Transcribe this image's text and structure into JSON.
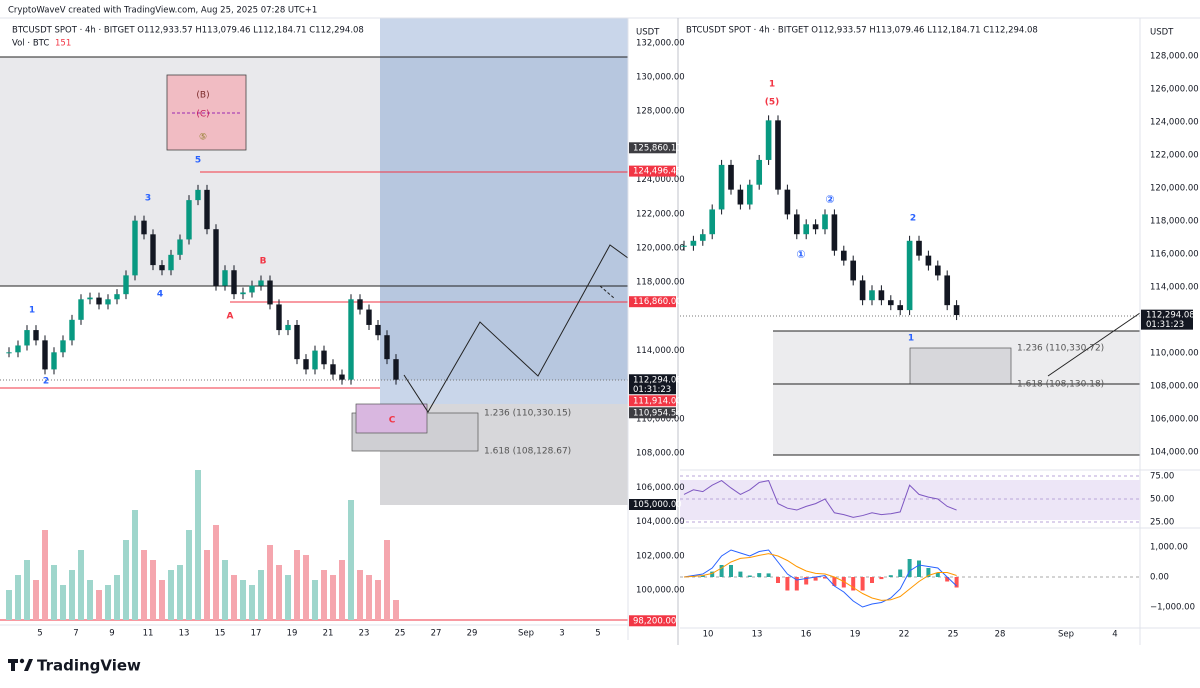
{
  "header": {
    "credit": "CryptoWaveV created with TradingView.com, Aug 25, 2025 07:28 UTC+1"
  },
  "left": {
    "symbol_line": "BTCUSDT SPOT · 4h · BITGET  O112,933.57  H113,079.46  L112,184.71  C112,294.08",
    "vol_label": "Vol · BTC",
    "vol_value": "151",
    "currency": "USDT",
    "yticks": [
      {
        "value": 132000,
        "label": "132,000.00"
      },
      {
        "value": 130000,
        "label": "130,000.00"
      },
      {
        "value": 128000,
        "label": "128,000.00"
      },
      {
        "value": 124000,
        "label": "124,000.00"
      },
      {
        "value": 122000,
        "label": "122,000.00"
      },
      {
        "value": 120000,
        "label": "120,000.00"
      },
      {
        "value": 118000,
        "label": "118,000.00"
      },
      {
        "value": 114000,
        "label": "114,000.00"
      },
      {
        "value": 110000,
        "label": "110,000.00"
      },
      {
        "value": 108000,
        "label": "108,000.00"
      },
      {
        "value": 106000,
        "label": "106,000.00"
      },
      {
        "value": 104000,
        "label": "104,000.00"
      },
      {
        "value": 102000,
        "label": "102,000.00"
      },
      {
        "value": 100000,
        "label": "100,000.00"
      }
    ],
    "xticks": [
      "5",
      "7",
      "9",
      "11",
      "13",
      "15",
      "17",
      "19",
      "21",
      "23",
      "25",
      "27",
      "29",
      "Sep",
      "3",
      "5"
    ],
    "price_tags": [
      {
        "value": 125860.11,
        "label": "125,860.11",
        "kind": "gray"
      },
      {
        "value": 124496.45,
        "label": "124,496.45",
        "kind": "red"
      },
      {
        "value": 116860,
        "label": "116,860.00",
        "kind": "red"
      },
      {
        "value": 112294.08,
        "label": "112,294.08",
        "time": "01:31:23",
        "kind": "black"
      },
      {
        "value": 111914,
        "label": "111,914.00",
        "kind": "red"
      },
      {
        "value": 110954.54,
        "label": "110,954.54",
        "kind": "gray"
      },
      {
        "value": 105000,
        "label": "105,000.00",
        "kind": "black"
      },
      {
        "value": 98200,
        "label": "98,200.00",
        "kind": "red"
      }
    ],
    "waves": [
      "1",
      "2",
      "3",
      "4",
      "5",
      "A",
      "B",
      "C"
    ],
    "box_labels": [
      "(B)",
      "(C)",
      "⑤"
    ],
    "fib": [
      "1.236 (110,330.15)",
      "1.618 (108,128.67)"
    ],
    "closes": [
      113900,
      114300,
      115200,
      114600,
      112900,
      113900,
      114600,
      115800,
      117000,
      117100,
      116700,
      117000,
      117300,
      118400,
      121600,
      120800,
      119000,
      118700,
      119600,
      120500,
      122800,
      123400,
      121100,
      117800,
      118700,
      117300,
      117400,
      117800,
      118100,
      116700,
      115200,
      115500,
      113500,
      112900,
      114000,
      113200,
      112600,
      112300,
      117000,
      116400,
      115500,
      114900,
      113500,
      112300
    ],
    "volume": [
      30,
      45,
      60,
      40,
      90,
      55,
      35,
      50,
      70,
      40,
      30,
      35,
      45,
      80,
      110,
      70,
      60,
      40,
      50,
      55,
      90,
      150,
      70,
      95,
      60,
      45,
      40,
      35,
      50,
      75,
      55,
      45,
      70,
      65,
      40,
      50,
      45,
      60,
      120,
      50,
      45,
      40,
      80,
      20
    ]
  },
  "right": {
    "symbol_line": "BTCUSDT SPOT · 4h · BITGET  O112,933.57  H113,079.46  L112,184.71  C112,294.08",
    "currency": "USDT",
    "yticks": [
      {
        "value": 128000,
        "label": "128,000.00"
      },
      {
        "value": 126000,
        "label": "126,000.00"
      },
      {
        "value": 124000,
        "label": "124,000.00"
      },
      {
        "value": 122000,
        "label": "122,000.00"
      },
      {
        "value": 120000,
        "label": "120,000.00"
      },
      {
        "value": 118000,
        "label": "118,000.00"
      },
      {
        "value": 116000,
        "label": "116,000.00"
      },
      {
        "value": 114000,
        "label": "114,000.00"
      },
      {
        "value": 110000,
        "label": "110,000.00"
      },
      {
        "value": 108000,
        "label": "108,000.00"
      },
      {
        "value": 106000,
        "label": "106,000.00"
      },
      {
        "value": 104000,
        "label": "104,000.00"
      }
    ],
    "xticks": [
      "10",
      "13",
      "16",
      "19",
      "22",
      "25",
      "28",
      "Sep",
      "4"
    ],
    "price_tag": {
      "value": 112294.08,
      "label": "112,294.08",
      "time": "01:31:23"
    },
    "waves": [
      "1",
      "(5)",
      "②",
      "①",
      "2",
      "1"
    ],
    "fib": [
      "1.236 (110,330.72)",
      "1.618 (108,130.18)"
    ],
    "closes": [
      116500,
      116800,
      117200,
      118700,
      121400,
      119900,
      119000,
      120200,
      121700,
      124100,
      119900,
      118400,
      117200,
      117800,
      117500,
      118400,
      116200,
      115600,
      114400,
      113200,
      113800,
      113200,
      112900,
      112600,
      116800,
      115900,
      115300,
      114700,
      112900,
      112300
    ],
    "rsi_ticks": [
      {
        "value": 75,
        "label": "75.00"
      },
      {
        "value": 50,
        "label": "50.00"
      },
      {
        "value": 25,
        "label": "25.00"
      }
    ],
    "rsi": [
      55,
      60,
      58,
      65,
      70,
      62,
      55,
      60,
      68,
      70,
      45,
      40,
      38,
      42,
      45,
      50,
      35,
      33,
      30,
      32,
      35,
      33,
      34,
      36,
      65,
      55,
      52,
      50,
      42,
      38
    ],
    "macd_ticks": [
      {
        "value": 1000,
        "label": "1,000.00"
      },
      {
        "value": 0,
        "label": "0.00"
      },
      {
        "value": -1000,
        "label": "−1,000.00"
      }
    ],
    "macd": [
      0,
      50,
      100,
      300,
      700,
      900,
      800,
      700,
      850,
      900,
      500,
      100,
      -100,
      -50,
      0,
      50,
      -300,
      -500,
      -800,
      -1000,
      -900,
      -850,
      -700,
      -400,
      200,
      400,
      350,
      300,
      0,
      -300
    ],
    "signal": [
      0,
      20,
      50,
      120,
      300,
      500,
      620,
      650,
      720,
      780,
      700,
      550,
      350,
      200,
      120,
      100,
      0,
      -150,
      -350,
      -550,
      -700,
      -780,
      -760,
      -650,
      -400,
      -150,
      50,
      150,
      150,
      50
    ]
  },
  "footer": {
    "brand": "TradingView"
  }
}
